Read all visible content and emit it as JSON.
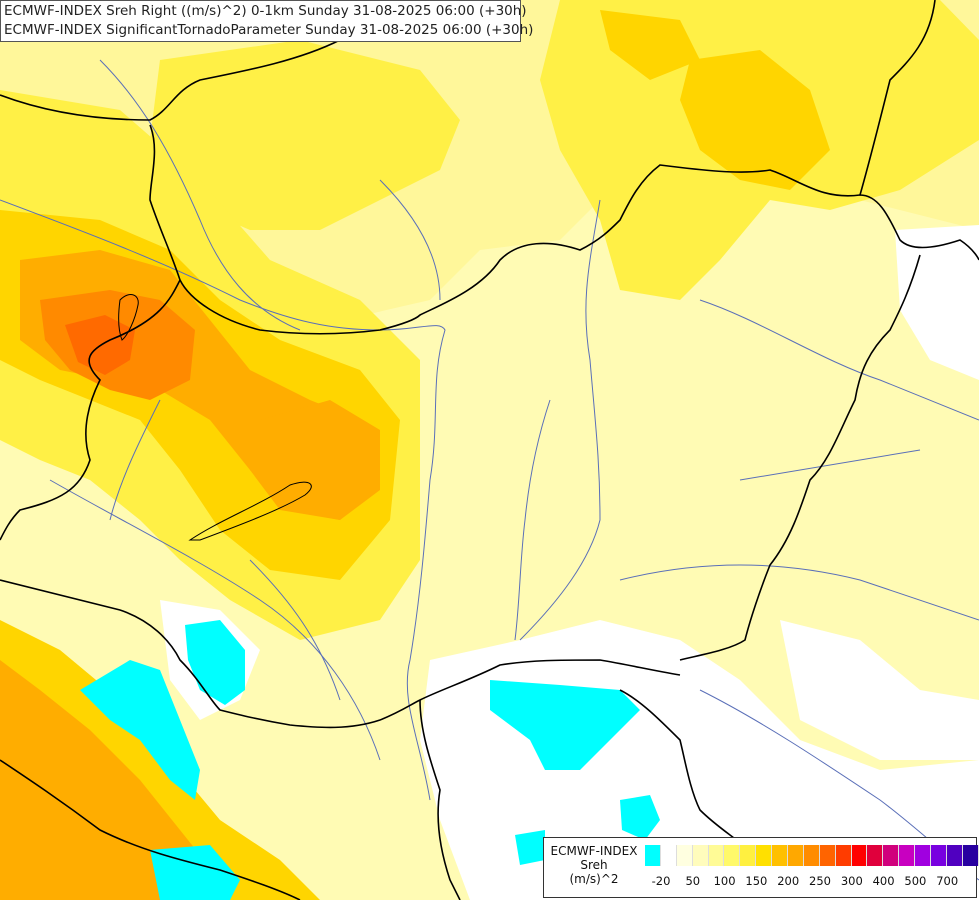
{
  "title": {
    "line1": "ECMWF-INDEX Sreh Right ((m/s)^2) 0-1km Sunday 31-08-2025 06:00 (+30h)",
    "line2": "ECMWF-INDEX SignificantTornadoParameter Sunday 31-08-2025 06:00 (+30h)"
  },
  "legend": {
    "model": "ECMWF-INDEX",
    "variable": "Sreh",
    "unit": "(m/s)^2",
    "colors": [
      "#00ffff",
      "#ffffff",
      "#ffffe0",
      "#fffcbc",
      "#fffb96",
      "#fff96a",
      "#fff040",
      "#ffe000",
      "#ffc000",
      "#ffa800",
      "#ff8c00",
      "#ff6400",
      "#ff3c00",
      "#ff0000",
      "#e0003c",
      "#d0007c",
      "#c800c0",
      "#a000e0",
      "#7800e0",
      "#5000c0",
      "#2800a0",
      "#000080"
    ],
    "ticks": [
      "-20",
      "50",
      "100",
      "150",
      "200",
      "250",
      "300",
      "400",
      "500",
      "700"
    ]
  },
  "palette": {
    "base": "#fffbb4",
    "light_yellow": "#fff79a",
    "yellow": "#fff046",
    "gold": "#ffd500",
    "orange": "#ffad00",
    "dark_orange": "#ff8a00",
    "red_orange": "#ff6a00",
    "cyan": "#00ffff",
    "white": "#ffffff",
    "border": "#000000",
    "river": "#5a6fb8"
  }
}
